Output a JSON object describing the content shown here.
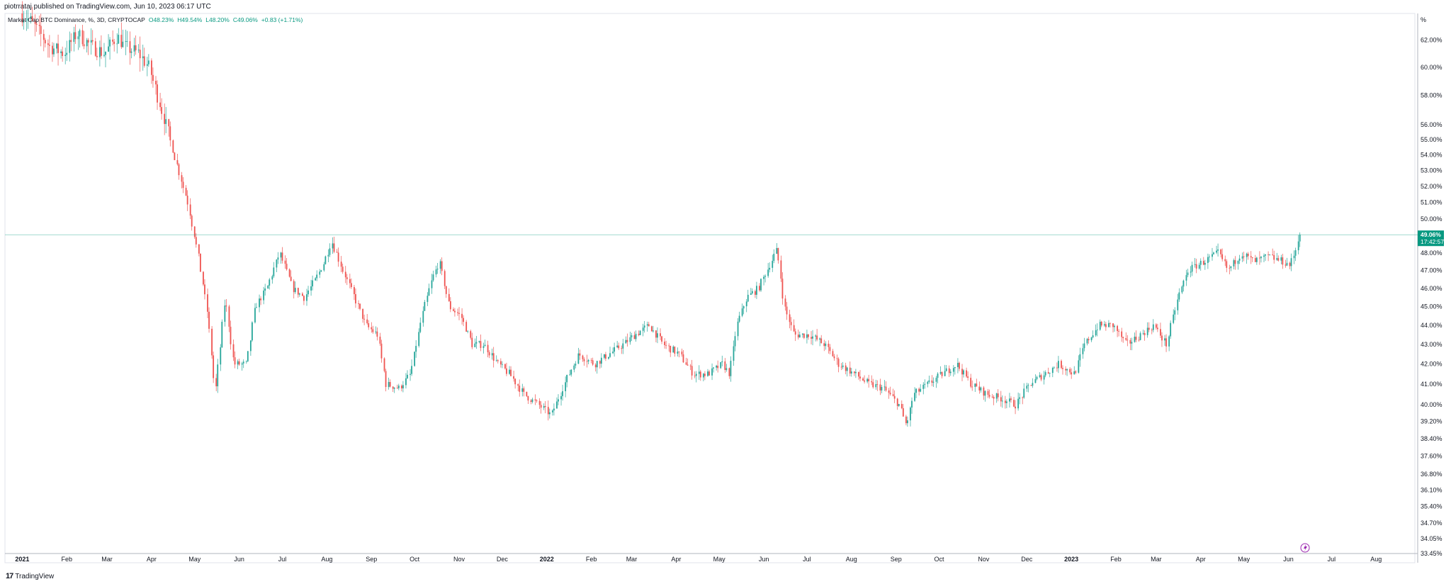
{
  "header": {
    "published": "piotrrataj published on TradingView.com, Jun 10, 2023 06:17 UTC"
  },
  "legend": {
    "title": "Market Cap BTC Dominance, %, 3D, CRYPTOCAP",
    "open": "O48.23%",
    "high": "H49.54%",
    "low": "L48.20%",
    "close": "C49.06%",
    "change": "+0.83 (+1.71%)"
  },
  "price_label": {
    "value": "49.06%",
    "countdown": "17:42:57"
  },
  "footer": {
    "brand": "TradingView",
    "mark": "17"
  },
  "colors": {
    "up": "#26a69a",
    "down": "#ef5350",
    "accent": "#089981",
    "grid": "#e0e3eb",
    "text": "#131722",
    "alert": "#9c27b0"
  },
  "icons": {
    "alert": "lightning-icon"
  },
  "chart_data": {
    "type": "candlestick",
    "title": "Market Cap BTC Dominance, %, 3D, CRYPTOCAP",
    "y_scale": "log",
    "ylim": [
      33.45,
      64.0
    ],
    "y_unit": "%",
    "xlim": [
      "2020-12-20",
      "2023-08-28"
    ],
    "x_ticks": [
      {
        "label": "2021",
        "date": "2021-01-01"
      },
      {
        "label": "Feb",
        "date": "2021-02-01"
      },
      {
        "label": "Mar",
        "date": "2021-03-01"
      },
      {
        "label": "Apr",
        "date": "2021-04-01"
      },
      {
        "label": "May",
        "date": "2021-05-01"
      },
      {
        "label": "Jun",
        "date": "2021-06-01"
      },
      {
        "label": "Jul",
        "date": "2021-07-01"
      },
      {
        "label": "Aug",
        "date": "2021-08-01"
      },
      {
        "label": "Sep",
        "date": "2021-09-01"
      },
      {
        "label": "Oct",
        "date": "2021-10-01"
      },
      {
        "label": "Nov",
        "date": "2021-11-01"
      },
      {
        "label": "Dec",
        "date": "2021-12-01"
      },
      {
        "label": "2022",
        "date": "2022-01-01"
      },
      {
        "label": "Feb",
        "date": "2022-02-01"
      },
      {
        "label": "Mar",
        "date": "2022-03-01"
      },
      {
        "label": "Apr",
        "date": "2022-04-01"
      },
      {
        "label": "May",
        "date": "2022-05-01"
      },
      {
        "label": "Jun",
        "date": "2022-06-01"
      },
      {
        "label": "Jul",
        "date": "2022-07-01"
      },
      {
        "label": "Aug",
        "date": "2022-08-01"
      },
      {
        "label": "Sep",
        "date": "2022-09-01"
      },
      {
        "label": "Oct",
        "date": "2022-10-01"
      },
      {
        "label": "Nov",
        "date": "2022-11-01"
      },
      {
        "label": "Dec",
        "date": "2022-12-01"
      },
      {
        "label": "2023",
        "date": "2023-01-01"
      },
      {
        "label": "Feb",
        "date": "2023-02-01"
      },
      {
        "label": "Mar",
        "date": "2023-03-01"
      },
      {
        "label": "Apr",
        "date": "2023-04-01"
      },
      {
        "label": "May",
        "date": "2023-05-01"
      },
      {
        "label": "Jun",
        "date": "2023-06-01"
      },
      {
        "label": "Jul",
        "date": "2023-07-01"
      },
      {
        "label": "Aug",
        "date": "2023-08-01"
      }
    ],
    "y_ticks": [
      "62.00%",
      "60.00%",
      "58.00%",
      "56.00%",
      "55.00%",
      "54.00%",
      "53.00%",
      "52.00%",
      "51.00%",
      "50.00%",
      "48.00%",
      "47.00%",
      "46.00%",
      "45.00%",
      "44.00%",
      "43.00%",
      "42.00%",
      "41.00%",
      "40.00%",
      "39.20%",
      "38.40%",
      "37.60%",
      "36.80%",
      "36.10%",
      "35.40%",
      "34.70%",
      "34.05%",
      "33.45%"
    ],
    "y_axis_unit_label": "%",
    "last_value": 49.06,
    "path": [
      [
        "2021-01-01",
        64.0
      ],
      [
        "2021-01-08",
        63.5
      ],
      [
        "2021-01-15",
        62.5
      ],
      [
        "2021-01-22",
        61.5
      ],
      [
        "2021-02-01",
        61.0
      ],
      [
        "2021-02-10",
        62.5
      ],
      [
        "2021-02-20",
        61.5
      ],
      [
        "2021-03-01",
        61.0
      ],
      [
        "2021-03-10",
        62.3
      ],
      [
        "2021-03-15",
        61.5
      ],
      [
        "2021-03-25",
        61.0
      ],
      [
        "2021-04-01",
        60.0
      ],
      [
        "2021-04-10",
        57.0
      ],
      [
        "2021-04-20",
        53.5
      ],
      [
        "2021-04-28",
        51.0
      ],
      [
        "2021-05-05",
        48.0
      ],
      [
        "2021-05-12",
        44.5
      ],
      [
        "2021-05-17",
        40.5
      ],
      [
        "2021-05-20",
        42.5
      ],
      [
        "2021-05-24",
        45.5
      ],
      [
        "2021-05-30",
        42.0
      ],
      [
        "2021-06-08",
        42.0
      ],
      [
        "2021-06-14",
        45.0
      ],
      [
        "2021-06-22",
        46.0
      ],
      [
        "2021-07-01",
        48.0
      ],
      [
        "2021-07-10",
        46.0
      ],
      [
        "2021-07-18",
        45.5
      ],
      [
        "2021-07-26",
        46.5
      ],
      [
        "2021-08-01",
        47.5
      ],
      [
        "2021-08-06",
        48.7
      ],
      [
        "2021-08-14",
        47.0
      ],
      [
        "2021-08-22",
        45.5
      ],
      [
        "2021-08-30",
        44.0
      ],
      [
        "2021-09-07",
        43.5
      ],
      [
        "2021-09-13",
        41.0
      ],
      [
        "2021-09-22",
        40.8
      ],
      [
        "2021-09-30",
        41.5
      ],
      [
        "2021-10-08",
        44.5
      ],
      [
        "2021-10-15",
        46.5
      ],
      [
        "2021-10-20",
        47.5
      ],
      [
        "2021-10-27",
        45.0
      ],
      [
        "2021-11-04",
        44.5
      ],
      [
        "2021-11-12",
        43.0
      ],
      [
        "2021-11-20",
        43.0
      ],
      [
        "2021-11-30",
        42.0
      ],
      [
        "2021-12-08",
        41.5
      ],
      [
        "2021-12-18",
        40.5
      ],
      [
        "2021-12-28",
        40.0
      ],
      [
        "2022-01-06",
        39.5
      ],
      [
        "2022-01-15",
        41.0
      ],
      [
        "2022-01-25",
        42.5
      ],
      [
        "2022-02-05",
        42.0
      ],
      [
        "2022-02-15",
        42.5
      ],
      [
        "2022-02-25",
        43.0
      ],
      [
        "2022-03-05",
        43.5
      ],
      [
        "2022-03-15",
        44.0
      ],
      [
        "2022-03-25",
        43.0
      ],
      [
        "2022-04-05",
        42.5
      ],
      [
        "2022-04-15",
        41.5
      ],
      [
        "2022-04-25",
        41.5
      ],
      [
        "2022-05-05",
        42.0
      ],
      [
        "2022-05-10",
        41.5
      ],
      [
        "2022-05-15",
        44.0
      ],
      [
        "2022-05-22",
        45.5
      ],
      [
        "2022-05-30",
        46.0
      ],
      [
        "2022-06-05",
        47.0
      ],
      [
        "2022-06-12",
        48.2
      ],
      [
        "2022-06-17",
        45.0
      ],
      [
        "2022-06-24",
        43.5
      ],
      [
        "2022-07-05",
        43.5
      ],
      [
        "2022-07-15",
        43.0
      ],
      [
        "2022-07-25",
        42.0
      ],
      [
        "2022-08-05",
        41.5
      ],
      [
        "2022-08-15",
        41.0
      ],
      [
        "2022-08-25",
        40.8
      ],
      [
        "2022-09-05",
        40.0
      ],
      [
        "2022-09-10",
        39.0
      ],
      [
        "2022-09-15",
        40.5
      ],
      [
        "2022-09-25",
        41.0
      ],
      [
        "2022-10-05",
        41.5
      ],
      [
        "2022-10-15",
        42.0
      ],
      [
        "2022-10-25",
        41.0
      ],
      [
        "2022-11-05",
        40.5
      ],
      [
        "2022-11-15",
        40.3
      ],
      [
        "2022-11-25",
        40.0
      ],
      [
        "2022-12-05",
        41.0
      ],
      [
        "2022-12-15",
        41.5
      ],
      [
        "2022-12-25",
        42.0
      ],
      [
        "2023-01-05",
        41.5
      ],
      [
        "2023-01-12",
        43.0
      ],
      [
        "2023-01-22",
        44.0
      ],
      [
        "2023-02-01",
        44.0
      ],
      [
        "2023-02-10",
        43.0
      ],
      [
        "2023-02-20",
        43.5
      ],
      [
        "2023-03-01",
        44.0
      ],
      [
        "2023-03-10",
        43.0
      ],
      [
        "2023-03-18",
        45.5
      ],
      [
        "2023-03-25",
        47.0
      ],
      [
        "2023-04-05",
        47.5
      ],
      [
        "2023-04-15",
        48.0
      ],
      [
        "2023-04-22",
        47.0
      ],
      [
        "2023-05-01",
        48.0
      ],
      [
        "2023-05-10",
        47.5
      ],
      [
        "2023-05-20",
        47.8
      ],
      [
        "2023-05-30",
        47.5
      ],
      [
        "2023-06-04",
        47.3
      ],
      [
        "2023-06-08",
        48.2
      ],
      [
        "2023-06-10",
        49.06
      ]
    ]
  }
}
